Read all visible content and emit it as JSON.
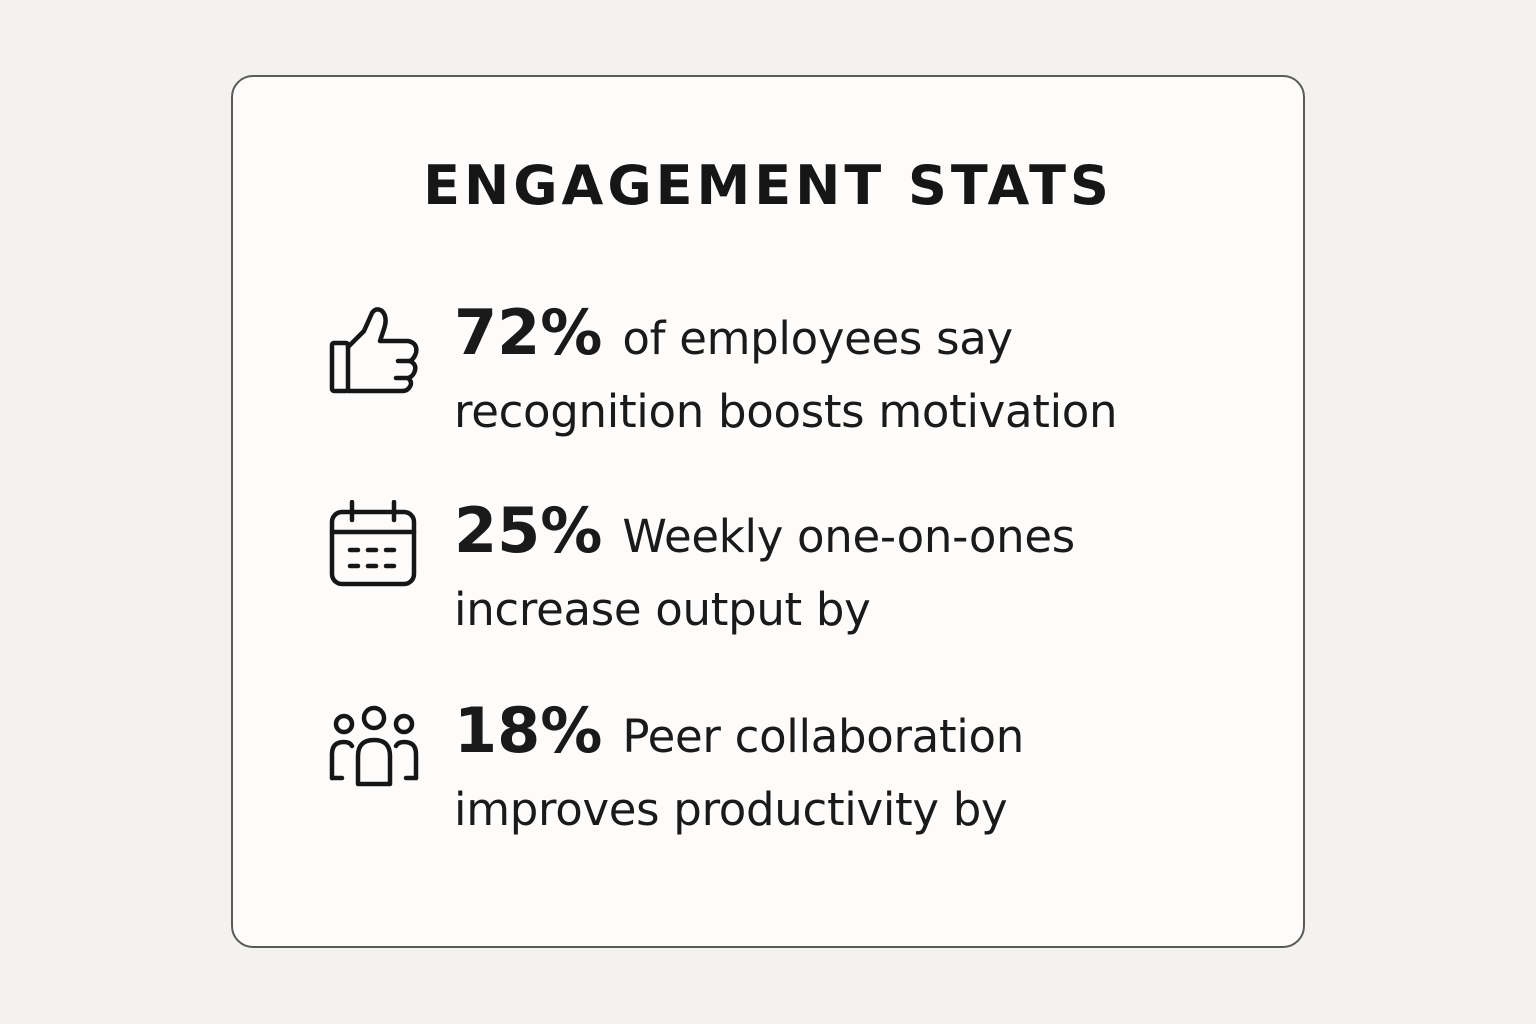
{
  "card": {
    "title": "ENGAGEMENT STATS"
  },
  "stats": [
    {
      "icon": "thumbs-up-icon",
      "value": "72%",
      "text": "of employees say recognition boosts motivation"
    },
    {
      "icon": "calendar-icon",
      "value": "25%",
      "text": "Weekly one-on-ones increase output by"
    },
    {
      "icon": "people-group-icon",
      "value": "18%",
      "text": "Peer collaboration improves productivity by"
    }
  ],
  "colors": {
    "background": "#f4f2ef",
    "card": "#fdfcfb",
    "border": "#5a5a5a",
    "text": "#161616"
  }
}
